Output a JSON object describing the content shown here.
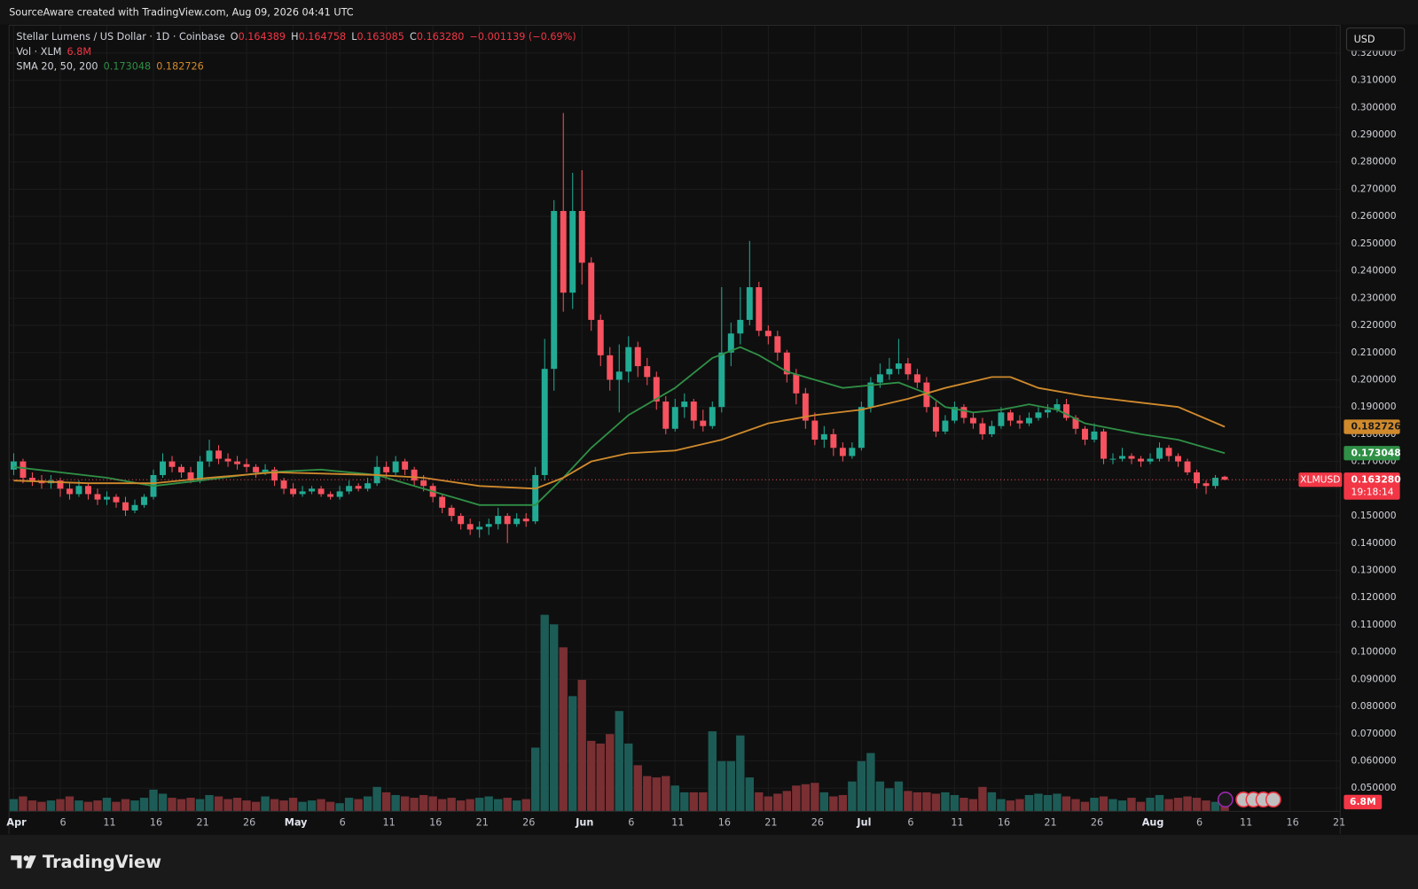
{
  "chart_data": {
    "type": "candlestick",
    "watermark": "SourceAware created with TradingView.com, Aug 09, 2026 04:41 UTC",
    "symbol": "Stellar Lumens / US Dollar · 1D · Coinbase",
    "ohlc_labels": [
      "O",
      "H",
      "L",
      "C"
    ],
    "last_labels": [
      "0.164389",
      "0.164758",
      "0.163085",
      "0.163280"
    ],
    "change": "−0.001139 (−0.69%)",
    "volume_title": "Vol · XLM",
    "volume_last_label": "6.8M",
    "sma_title": "SMA 20, 50, 200",
    "ticker": "XLMUSD",
    "countdown": "19:18:14",
    "currency": "USD",
    "brand": "TradingView",
    "grid": true,
    "up_color": "#22ab94",
    "down_color": "#f7525f",
    "volume_up_color": "#1d5c56",
    "volume_down_color": "#7a2f33",
    "xlim": [
      -0.5,
      142.4
    ],
    "xticks": [
      {
        "value": 0,
        "label": "Apr"
      },
      {
        "value": 5,
        "label": "6"
      },
      {
        "value": 10,
        "label": "11"
      },
      {
        "value": 15,
        "label": "16"
      },
      {
        "value": 20,
        "label": "21"
      },
      {
        "value": 25,
        "label": "26"
      },
      {
        "value": 30,
        "label": "May"
      },
      {
        "value": 35,
        "label": "6"
      },
      {
        "value": 40,
        "label": "11"
      },
      {
        "value": 45,
        "label": "16"
      },
      {
        "value": 50,
        "label": "21"
      },
      {
        "value": 55,
        "label": "26"
      },
      {
        "value": 61,
        "label": "Jun"
      },
      {
        "value": 66,
        "label": "6"
      },
      {
        "value": 71,
        "label": "11"
      },
      {
        "value": 76,
        "label": "16"
      },
      {
        "value": 81,
        "label": "21"
      },
      {
        "value": 86,
        "label": "26"
      },
      {
        "value": 91,
        "label": "Jul"
      },
      {
        "value": 96,
        "label": "6"
      },
      {
        "value": 101,
        "label": "11"
      },
      {
        "value": 106,
        "label": "16"
      },
      {
        "value": 111,
        "label": "21"
      },
      {
        "value": 116,
        "label": "26"
      },
      {
        "value": 122,
        "label": "Aug"
      },
      {
        "value": 127,
        "label": "6"
      },
      {
        "value": 132,
        "label": "11"
      },
      {
        "value": 137,
        "label": "16"
      },
      {
        "value": 142,
        "label": "21"
      }
    ],
    "ylim": [
      0.0415,
      0.3302
    ],
    "yticks": [
      {
        "value": 0.05,
        "label": "0.050000"
      },
      {
        "value": 0.06,
        "label": "0.060000"
      },
      {
        "value": 0.07,
        "label": "0.070000"
      },
      {
        "value": 0.08,
        "label": "0.080000"
      },
      {
        "value": 0.09,
        "label": "0.090000"
      },
      {
        "value": 0.1,
        "label": "0.100000"
      },
      {
        "value": 0.11,
        "label": "0.110000"
      },
      {
        "value": 0.12,
        "label": "0.120000"
      },
      {
        "value": 0.13,
        "label": "0.130000"
      },
      {
        "value": 0.14,
        "label": "0.140000"
      },
      {
        "value": 0.15,
        "label": "0.150000"
      },
      {
        "value": 0.16,
        "label": "0.160000"
      },
      {
        "value": 0.17,
        "label": "0.170000"
      },
      {
        "value": 0.18,
        "label": "0.180000"
      },
      {
        "value": 0.19,
        "label": "0.190000"
      },
      {
        "value": 0.2,
        "label": "0.200000"
      },
      {
        "value": 0.21,
        "label": "0.210000"
      },
      {
        "value": 0.22,
        "label": "0.220000"
      },
      {
        "value": 0.23,
        "label": "0.230000"
      },
      {
        "value": 0.24,
        "label": "0.240000"
      },
      {
        "value": 0.25,
        "label": "0.250000"
      },
      {
        "value": 0.26,
        "label": "0.260000"
      },
      {
        "value": 0.27,
        "label": "0.270000"
      },
      {
        "value": 0.28,
        "label": "0.280000"
      },
      {
        "value": 0.29,
        "label": "0.290000"
      },
      {
        "value": 0.3,
        "label": "0.300000"
      },
      {
        "value": 0.31,
        "label": "0.310000"
      },
      {
        "value": 0.32,
        "label": "0.320000"
      }
    ],
    "volume_lim": [
      0,
      580
    ],
    "ohlc": [
      [
        0.167,
        0.173,
        0.165,
        0.17
      ],
      [
        0.17,
        0.171,
        0.162,
        0.164
      ],
      [
        0.164,
        0.166,
        0.161,
        0.163
      ],
      [
        0.163,
        0.165,
        0.16,
        0.162
      ],
      [
        0.162,
        0.165,
        0.16,
        0.163
      ],
      [
        0.163,
        0.164,
        0.157,
        0.16
      ],
      [
        0.16,
        0.162,
        0.156,
        0.158
      ],
      [
        0.158,
        0.163,
        0.157,
        0.161
      ],
      [
        0.161,
        0.162,
        0.156,
        0.158
      ],
      [
        0.158,
        0.16,
        0.154,
        0.156
      ],
      [
        0.156,
        0.159,
        0.154,
        0.157
      ],
      [
        0.157,
        0.158,
        0.153,
        0.155
      ],
      [
        0.155,
        0.157,
        0.15,
        0.152
      ],
      [
        0.152,
        0.156,
        0.151,
        0.154
      ],
      [
        0.154,
        0.158,
        0.153,
        0.157
      ],
      [
        0.157,
        0.167,
        0.156,
        0.165
      ],
      [
        0.165,
        0.173,
        0.164,
        0.17
      ],
      [
        0.17,
        0.172,
        0.166,
        0.168
      ],
      [
        0.168,
        0.169,
        0.164,
        0.166
      ],
      [
        0.166,
        0.168,
        0.162,
        0.163
      ],
      [
        0.163,
        0.172,
        0.162,
        0.17
      ],
      [
        0.17,
        0.178,
        0.168,
        0.174
      ],
      [
        0.174,
        0.176,
        0.169,
        0.171
      ],
      [
        0.171,
        0.173,
        0.168,
        0.17
      ],
      [
        0.17,
        0.172,
        0.167,
        0.169
      ],
      [
        0.169,
        0.171,
        0.166,
        0.168
      ],
      [
        0.168,
        0.169,
        0.164,
        0.166
      ],
      [
        0.166,
        0.169,
        0.165,
        0.167
      ],
      [
        0.167,
        0.168,
        0.161,
        0.163
      ],
      [
        0.163,
        0.164,
        0.158,
        0.16
      ],
      [
        0.16,
        0.162,
        0.157,
        0.158
      ],
      [
        0.158,
        0.161,
        0.157,
        0.159
      ],
      [
        0.159,
        0.161,
        0.158,
        0.16
      ],
      [
        0.16,
        0.161,
        0.157,
        0.158
      ],
      [
        0.158,
        0.159,
        0.156,
        0.157
      ],
      [
        0.157,
        0.161,
        0.156,
        0.159
      ],
      [
        0.159,
        0.163,
        0.158,
        0.161
      ],
      [
        0.161,
        0.162,
        0.159,
        0.16
      ],
      [
        0.16,
        0.164,
        0.159,
        0.162
      ],
      [
        0.162,
        0.172,
        0.161,
        0.168
      ],
      [
        0.168,
        0.17,
        0.164,
        0.166
      ],
      [
        0.166,
        0.172,
        0.165,
        0.17
      ],
      [
        0.17,
        0.171,
        0.165,
        0.167
      ],
      [
        0.167,
        0.168,
        0.161,
        0.163
      ],
      [
        0.163,
        0.165,
        0.159,
        0.161
      ],
      [
        0.161,
        0.162,
        0.155,
        0.157
      ],
      [
        0.157,
        0.158,
        0.151,
        0.153
      ],
      [
        0.153,
        0.154,
        0.148,
        0.15
      ],
      [
        0.15,
        0.151,
        0.145,
        0.147
      ],
      [
        0.147,
        0.149,
        0.143,
        0.145
      ],
      [
        0.145,
        0.148,
        0.142,
        0.146
      ],
      [
        0.146,
        0.149,
        0.143,
        0.147
      ],
      [
        0.147,
        0.153,
        0.145,
        0.15
      ],
      [
        0.15,
        0.151,
        0.14,
        0.147
      ],
      [
        0.147,
        0.151,
        0.146,
        0.149
      ],
      [
        0.149,
        0.151,
        0.146,
        0.148
      ],
      [
        0.148,
        0.168,
        0.147,
        0.165
      ],
      [
        0.165,
        0.215,
        0.163,
        0.204
      ],
      [
        0.204,
        0.266,
        0.196,
        0.262
      ],
      [
        0.262,
        0.298,
        0.225,
        0.232
      ],
      [
        0.232,
        0.276,
        0.226,
        0.262
      ],
      [
        0.262,
        0.277,
        0.235,
        0.243
      ],
      [
        0.243,
        0.245,
        0.218,
        0.222
      ],
      [
        0.222,
        0.224,
        0.205,
        0.209
      ],
      [
        0.209,
        0.212,
        0.196,
        0.2
      ],
      [
        0.2,
        0.213,
        0.188,
        0.203
      ],
      [
        0.203,
        0.216,
        0.199,
        0.212
      ],
      [
        0.212,
        0.214,
        0.201,
        0.205
      ],
      [
        0.205,
        0.208,
        0.198,
        0.201
      ],
      [
        0.201,
        0.203,
        0.189,
        0.192
      ],
      [
        0.192,
        0.194,
        0.18,
        0.182
      ],
      [
        0.182,
        0.193,
        0.181,
        0.19
      ],
      [
        0.19,
        0.195,
        0.186,
        0.192
      ],
      [
        0.192,
        0.193,
        0.182,
        0.185
      ],
      [
        0.185,
        0.189,
        0.181,
        0.183
      ],
      [
        0.183,
        0.192,
        0.182,
        0.19
      ],
      [
        0.19,
        0.234,
        0.188,
        0.21
      ],
      [
        0.21,
        0.221,
        0.205,
        0.217
      ],
      [
        0.217,
        0.234,
        0.213,
        0.222
      ],
      [
        0.222,
        0.251,
        0.22,
        0.234
      ],
      [
        0.234,
        0.236,
        0.216,
        0.218
      ],
      [
        0.218,
        0.22,
        0.213,
        0.216
      ],
      [
        0.216,
        0.218,
        0.207,
        0.21
      ],
      [
        0.21,
        0.211,
        0.199,
        0.202
      ],
      [
        0.202,
        0.204,
        0.191,
        0.195
      ],
      [
        0.195,
        0.197,
        0.182,
        0.185
      ],
      [
        0.185,
        0.188,
        0.176,
        0.178
      ],
      [
        0.178,
        0.183,
        0.175,
        0.18
      ],
      [
        0.18,
        0.182,
        0.172,
        0.175
      ],
      [
        0.175,
        0.177,
        0.17,
        0.172
      ],
      [
        0.172,
        0.177,
        0.171,
        0.175
      ],
      [
        0.175,
        0.192,
        0.174,
        0.19
      ],
      [
        0.19,
        0.201,
        0.188,
        0.199
      ],
      [
        0.199,
        0.206,
        0.197,
        0.202
      ],
      [
        0.202,
        0.208,
        0.2,
        0.204
      ],
      [
        0.204,
        0.215,
        0.202,
        0.206
      ],
      [
        0.206,
        0.208,
        0.2,
        0.202
      ],
      [
        0.202,
        0.204,
        0.197,
        0.199
      ],
      [
        0.199,
        0.201,
        0.188,
        0.19
      ],
      [
        0.19,
        0.192,
        0.179,
        0.181
      ],
      [
        0.181,
        0.187,
        0.18,
        0.185
      ],
      [
        0.185,
        0.192,
        0.184,
        0.19
      ],
      [
        0.19,
        0.191,
        0.184,
        0.186
      ],
      [
        0.186,
        0.188,
        0.182,
        0.184
      ],
      [
        0.184,
        0.186,
        0.178,
        0.18
      ],
      [
        0.18,
        0.185,
        0.179,
        0.183
      ],
      [
        0.183,
        0.19,
        0.182,
        0.188
      ],
      [
        0.188,
        0.189,
        0.183,
        0.185
      ],
      [
        0.185,
        0.187,
        0.182,
        0.184
      ],
      [
        0.184,
        0.188,
        0.183,
        0.186
      ],
      [
        0.186,
        0.19,
        0.185,
        0.188
      ],
      [
        0.188,
        0.191,
        0.186,
        0.189
      ],
      [
        0.189,
        0.193,
        0.188,
        0.191
      ],
      [
        0.191,
        0.193,
        0.185,
        0.186
      ],
      [
        0.186,
        0.187,
        0.18,
        0.182
      ],
      [
        0.182,
        0.183,
        0.176,
        0.178
      ],
      [
        0.178,
        0.184,
        0.177,
        0.181
      ],
      [
        0.181,
        0.182,
        0.169,
        0.171
      ],
      [
        0.171,
        0.173,
        0.169,
        0.171
      ],
      [
        0.171,
        0.175,
        0.17,
        0.172
      ],
      [
        0.172,
        0.173,
        0.169,
        0.171
      ],
      [
        0.171,
        0.172,
        0.168,
        0.17
      ],
      [
        0.17,
        0.173,
        0.169,
        0.171
      ],
      [
        0.171,
        0.177,
        0.17,
        0.175
      ],
      [
        0.175,
        0.176,
        0.17,
        0.172
      ],
      [
        0.172,
        0.173,
        0.168,
        0.17
      ],
      [
        0.17,
        0.171,
        0.165,
        0.166
      ],
      [
        0.166,
        0.167,
        0.16,
        0.162
      ],
      [
        0.162,
        0.163,
        0.158,
        0.161
      ],
      [
        0.161,
        0.165,
        0.16,
        0.164
      ],
      [
        0.164389,
        0.164758,
        0.163085,
        0.16328
      ]
    ],
    "volume": [
      9,
      11,
      8,
      7,
      8,
      9,
      11,
      8,
      7,
      8,
      10,
      7,
      9,
      8,
      10,
      16,
      13,
      10,
      9,
      10,
      9,
      12,
      11,
      9,
      10,
      8,
      7,
      11,
      9,
      8,
      10,
      7,
      8,
      9,
      7,
      6,
      10,
      9,
      11,
      18,
      14,
      12,
      11,
      10,
      12,
      11,
      9,
      10,
      8,
      9,
      10,
      11,
      9,
      10,
      8,
      9,
      47,
      145,
      138,
      121,
      85,
      97,
      52,
      50,
      57,
      74,
      50,
      34,
      26,
      25,
      26,
      19,
      14,
      14,
      14,
      59,
      37,
      37,
      56,
      25,
      14,
      11,
      13,
      15,
      19,
      20,
      21,
      14,
      11,
      12,
      22,
      37,
      43,
      22,
      17,
      22,
      15,
      14,
      14,
      13,
      14,
      12,
      10,
      9,
      18,
      14,
      9,
      8,
      9,
      12,
      13,
      12,
      13,
      11,
      9,
      7,
      10,
      11,
      9,
      8,
      10,
      7,
      10,
      12,
      9,
      10,
      11,
      10,
      8,
      7,
      6.8
    ],
    "sma": [
      {
        "color": "#2f8f46",
        "x": [
          0,
          10,
          15,
          20,
          27,
          33,
          39,
          44,
          50,
          56,
          59,
          62,
          66,
          71,
          75,
          78,
          80,
          83,
          86,
          89,
          92,
          95,
          98,
          100,
          103,
          106,
          109,
          112,
          115,
          118,
          121,
          125,
          130
        ],
        "values": [
          0.168,
          0.164,
          0.161,
          0.163,
          0.166,
          0.167,
          0.165,
          0.16,
          0.154,
          0.154,
          0.164,
          0.175,
          0.187,
          0.197,
          0.208,
          0.212,
          0.209,
          0.203,
          0.2,
          0.197,
          0.198,
          0.199,
          0.195,
          0.19,
          0.188,
          0.189,
          0.191,
          0.189,
          0.184,
          0.182,
          0.18,
          0.178,
          0.173048
        ]
      },
      {
        "color": "#d08a2c",
        "x": [
          0,
          8,
          15,
          21,
          28,
          39,
          44,
          50,
          56,
          59,
          62,
          66,
          71,
          76,
          81,
          86,
          91,
          96,
          100,
          105,
          107,
          110,
          115,
          120,
          125,
          130
        ],
        "values": [
          0.163,
          0.162,
          0.162,
          0.164,
          0.166,
          0.165,
          0.164,
          0.161,
          0.16,
          0.164,
          0.17,
          0.173,
          0.174,
          0.178,
          0.184,
          0.187,
          0.189,
          0.193,
          0.197,
          0.201,
          0.201,
          0.197,
          0.194,
          0.192,
          0.19,
          0.182726
        ]
      }
    ]
  }
}
